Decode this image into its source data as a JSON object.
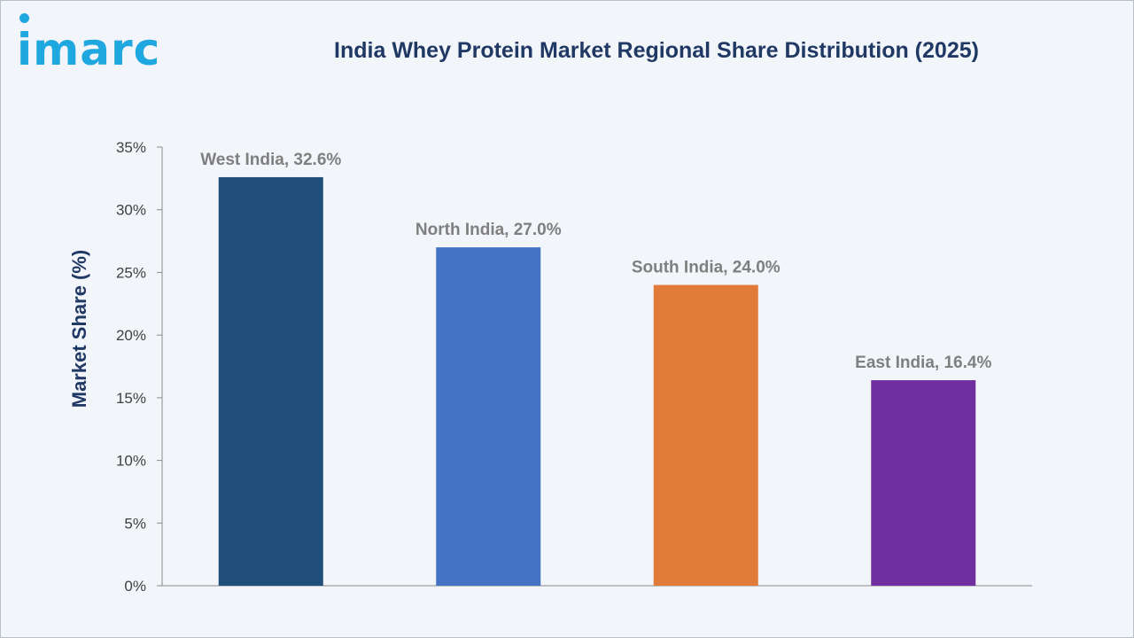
{
  "header": {
    "logo_text": "imarc",
    "title": "India Whey Protein Market Regional Share Distribution (2025)"
  },
  "colors": {
    "logo": "#1fa7df",
    "title": "#1f3864",
    "background": "#f2f5f9"
  },
  "chart_data": {
    "type": "bar",
    "title": "India Whey Protein Market Regional Share Distribution (2025)",
    "xlabel": "",
    "ylabel": "Market Share (%)",
    "ylim": [
      0,
      35
    ],
    "yticks": [
      0,
      5,
      10,
      15,
      20,
      25,
      30,
      35
    ],
    "ytick_labels": [
      "0%",
      "5%",
      "10%",
      "15%",
      "20%",
      "25%",
      "30%",
      "35%"
    ],
    "grid": false,
    "legend": "none",
    "categories": [
      "West India",
      "North India",
      "South India",
      "East India"
    ],
    "values": [
      32.6,
      27.0,
      24.0,
      16.4
    ],
    "data_labels": [
      "West India, 32.6%",
      "North India, 27.0%",
      "South India, 24.0%",
      "East India, 16.4%"
    ],
    "bar_colors": [
      "#1f4e79",
      "#4472c4",
      "#e07b39",
      "#7030a0"
    ]
  }
}
